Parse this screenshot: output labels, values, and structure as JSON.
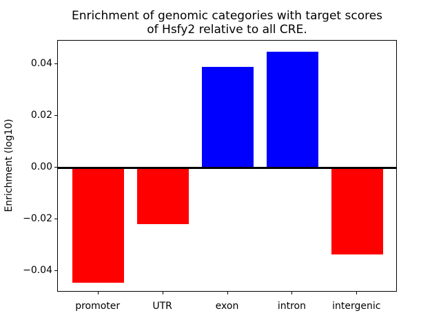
{
  "chart_data": {
    "type": "bar",
    "title": "Enrichment of genomic categories with target scores\nof Hsfy2 relative to all CRE.",
    "xlabel": "",
    "ylabel": "Enrichment (log10)",
    "categories": [
      "promoter",
      "UTR",
      "exon",
      "intron",
      "intergenic"
    ],
    "values": [
      -0.0445,
      -0.0218,
      0.0389,
      0.0447,
      -0.0336
    ],
    "colors": {
      "positive": "#0000ff",
      "negative": "#ff0000",
      "axis": "#000000",
      "background": "#ffffff"
    },
    "ylim": [
      -0.0482,
      0.049
    ],
    "ytick_values": [
      0.04,
      0.02,
      0.0,
      -0.02,
      -0.04
    ],
    "ytick_labels": [
      "0.04",
      "0.02",
      "0.00",
      "−0.02",
      "−0.04"
    ],
    "bar_width_fraction": 0.8,
    "zero_line": true,
    "grid": false,
    "legend": "none"
  }
}
